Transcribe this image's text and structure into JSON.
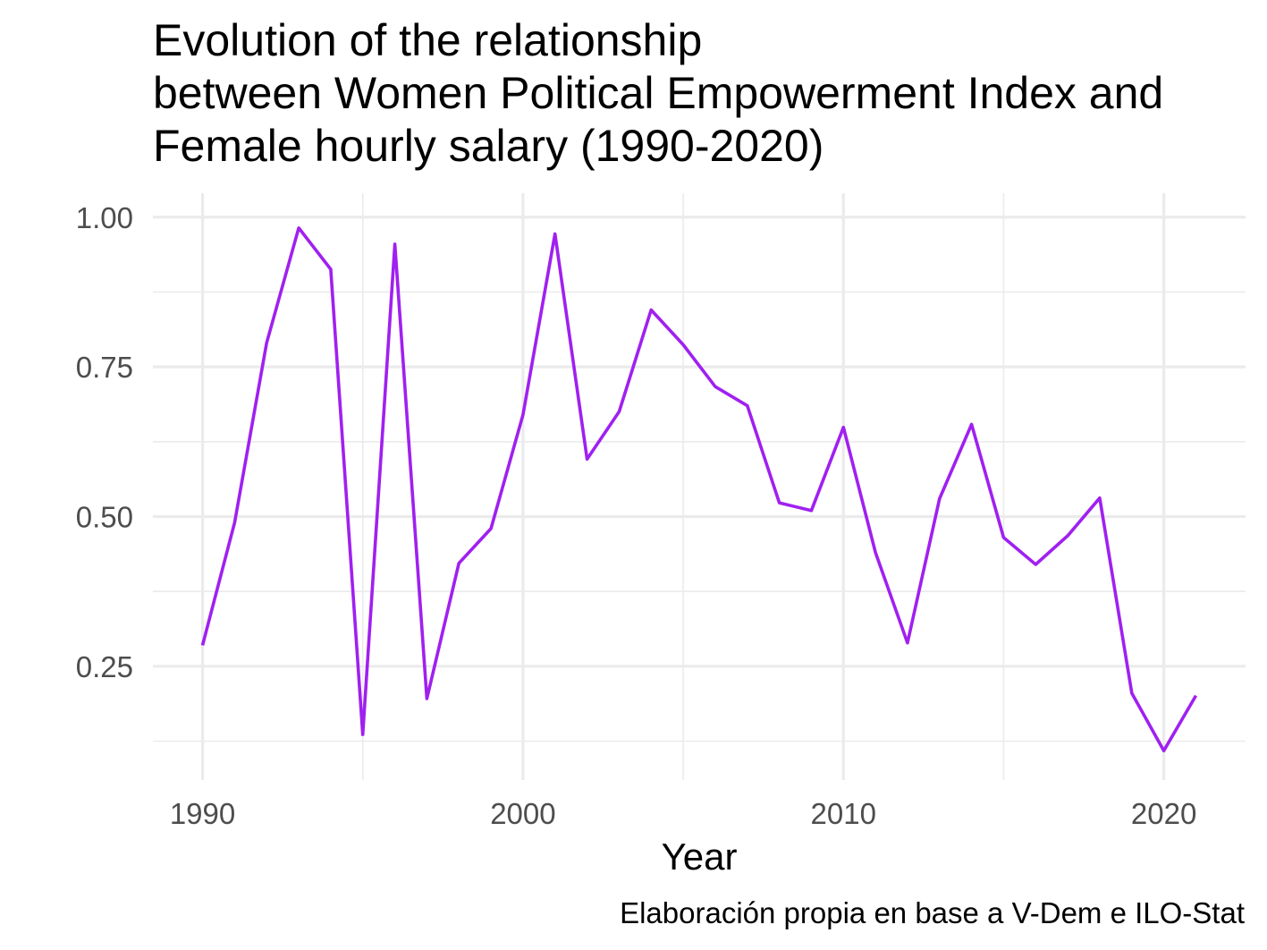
{
  "chart_data": {
    "type": "line",
    "title_lines": [
      "Evolution of the relationship",
      "between Women Political Empowerment Index and",
      "Female hourly salary (1990-2020)"
    ],
    "xlabel": "Year",
    "ylabel": "",
    "caption": "Elaboración propia en base a V-Dem e ILO-Stat",
    "x_ticks": [
      1990,
      2000,
      2010,
      2020
    ],
    "x_tick_labels": [
      "1990",
      "2000",
      "2010",
      "2020"
    ],
    "y_ticks": [
      0.25,
      0.5,
      0.75,
      1.0
    ],
    "y_tick_labels": [
      "0.25",
      "0.50",
      "0.75",
      "1.00"
    ],
    "xlim": [
      1988.45,
      1992.55
    ],
    "ylim": [
      0.06,
      1.04
    ],
    "grid": true,
    "line_color": "#a020f0",
    "series": [
      {
        "x": [
          1990,
          1991,
          1992,
          1993,
          1994,
          1995,
          1996,
          1997,
          1998,
          1999,
          2000,
          2001,
          2002,
          2003,
          2004,
          2005,
          2006,
          2007,
          2008,
          2009,
          2010,
          2011,
          2012,
          2013,
          2014,
          2015,
          2016,
          2017,
          2018,
          2019,
          2020,
          2021
        ],
        "values": [
          0.285,
          0.49,
          0.79,
          0.982,
          0.913,
          0.136,
          0.955,
          0.196,
          0.422,
          0.48,
          0.67,
          0.972,
          0.596,
          0.675,
          0.845,
          0.787,
          0.717,
          0.685,
          0.523,
          0.51,
          0.649,
          0.44,
          0.289,
          0.53,
          0.654,
          0.465,
          0.42,
          0.468,
          0.531,
          0.205,
          0.109,
          0.201
        ]
      }
    ]
  }
}
